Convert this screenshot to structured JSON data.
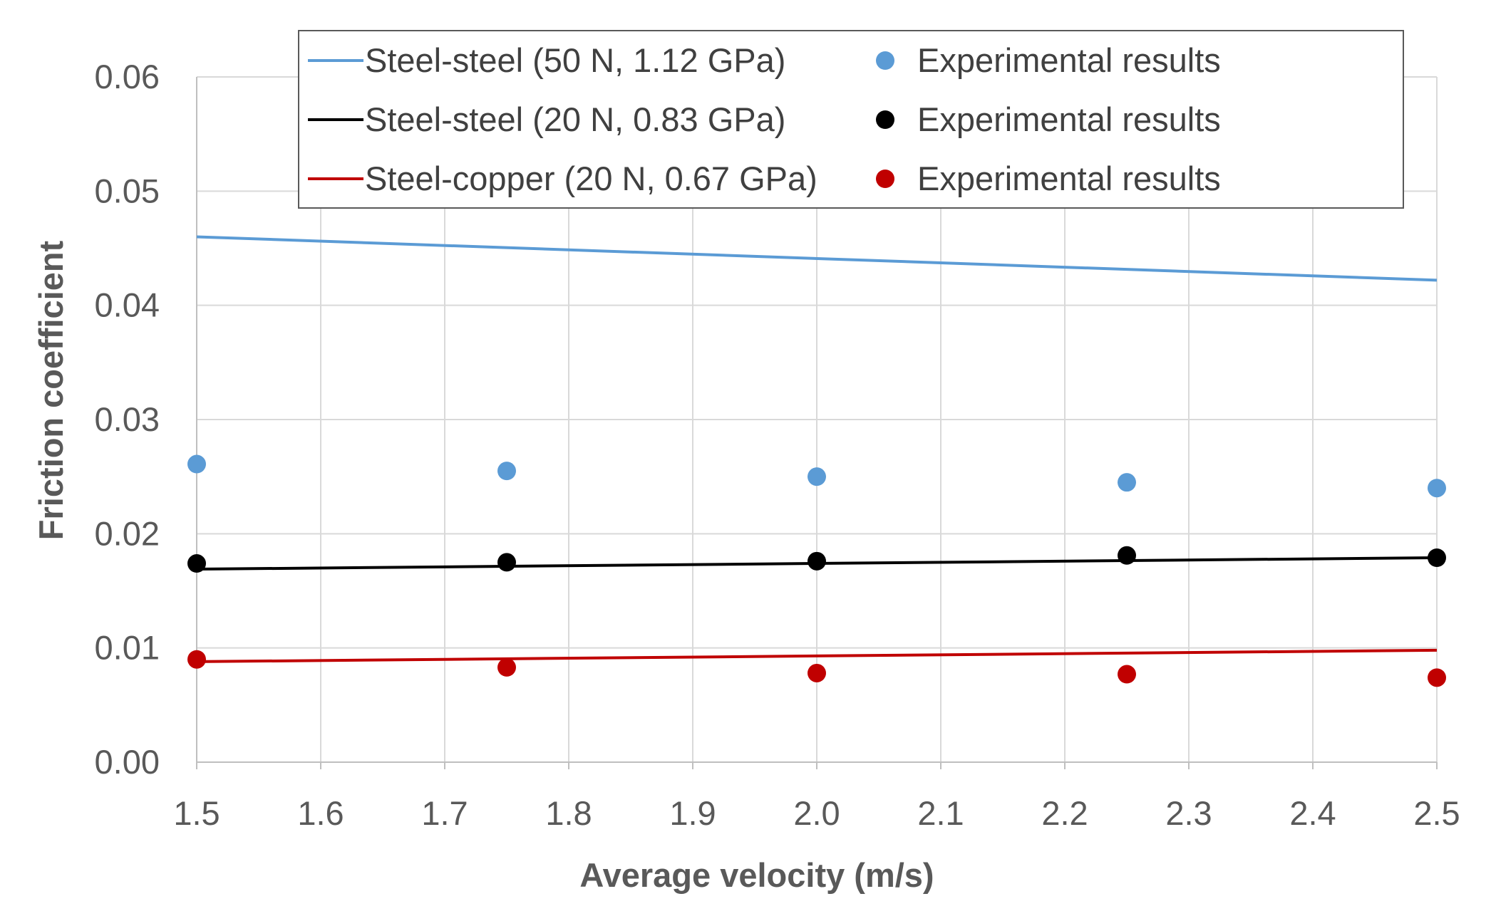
{
  "chart_data": {
    "type": "line+scatter",
    "title": "",
    "xlabel": "Average velocity (m/s)",
    "ylabel": "Friction coefficient",
    "xlim": [
      1.5,
      2.5
    ],
    "ylim": [
      0.0,
      0.06
    ],
    "x_ticks": [
      "1.5",
      "1.6",
      "1.7",
      "1.8",
      "1.9",
      "2.0",
      "2.1",
      "2.2",
      "2.3",
      "2.4",
      "2.5"
    ],
    "y_ticks": [
      "0.00",
      "0.01",
      "0.02",
      "0.03",
      "0.04",
      "0.05",
      "0.06"
    ],
    "grid": true,
    "legend_position": "top",
    "series": [
      {
        "name": "Steel-steel (50 N, 1.12 GPa)",
        "kind": "line",
        "color": "#5b9bd5",
        "x": [
          1.5,
          2.5
        ],
        "y": [
          0.046,
          0.0422
        ]
      },
      {
        "name": "Experimental results",
        "kind": "scatter",
        "color": "#5b9bd5",
        "x": [
          1.5,
          1.75,
          2.0,
          2.25,
          2.5
        ],
        "y": [
          0.0261,
          0.0255,
          0.025,
          0.0245,
          0.024
        ]
      },
      {
        "name": "Steel-steel (20 N, 0.83 GPa)",
        "kind": "line",
        "color": "#000000",
        "x": [
          1.5,
          2.5
        ],
        "y": [
          0.0169,
          0.0179
        ]
      },
      {
        "name": "Experimental results",
        "kind": "scatter",
        "color": "#000000",
        "x": [
          1.5,
          1.75,
          2.0,
          2.25,
          2.5
        ],
        "y": [
          0.0174,
          0.0175,
          0.0176,
          0.0181,
          0.0179
        ]
      },
      {
        "name": "Steel-copper (20 N, 0.67 GPa)",
        "kind": "line",
        "color": "#c00000",
        "x": [
          1.5,
          2.5
        ],
        "y": [
          0.0088,
          0.0098
        ]
      },
      {
        "name": "Experimental results",
        "kind": "scatter",
        "color": "#c00000",
        "x": [
          1.5,
          1.75,
          2.0,
          2.25,
          2.5
        ],
        "y": [
          0.009,
          0.0083,
          0.0078,
          0.0077,
          0.0074
        ]
      }
    ]
  }
}
